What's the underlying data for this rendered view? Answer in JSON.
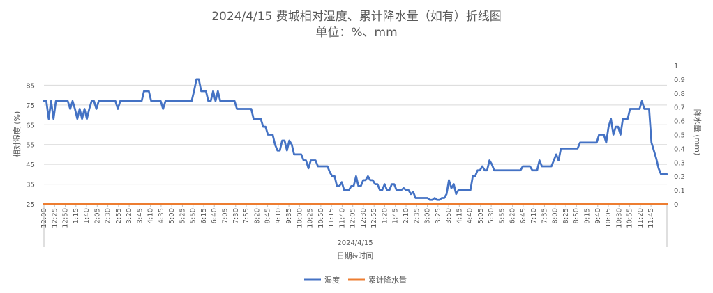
{
  "chart_data": {
    "type": "line",
    "title": "2024/4/15 费城相对湿度、累计降水量（如有）折线图",
    "subtitle": "单位：%、mm",
    "xlabel": "日期&时间",
    "x_group_label": "2024/4/15",
    "ylabel_left": "相对湿度 (%)",
    "ylabel_right": "降水量 (mm)",
    "ylim_left": [
      25,
      95
    ],
    "yticks_left": [
      "25",
      "35",
      "45",
      "55",
      "65",
      "75",
      "85"
    ],
    "ylim_right": [
      0,
      1
    ],
    "yticks_right": [
      "0",
      "0.1",
      "0.2",
      "0.3",
      "0.4",
      "0.5",
      "0.6",
      "0.7",
      "0.8",
      "0.9",
      "1"
    ],
    "x_tick_labels": [
      "12:00",
      "12:25",
      "12:50",
      "1:15",
      "1:40",
      "2:05",
      "2:30",
      "2:55",
      "3:20",
      "3:45",
      "4:10",
      "4:35",
      "5:00",
      "5:25",
      "5:50",
      "6:15",
      "6:40",
      "7:05",
      "7:30",
      "7:55",
      "8:20",
      "8:45",
      "9:10",
      "9:35",
      "10:00",
      "10:25",
      "10:50",
      "11:15",
      "11:40",
      "12:05",
      "12:30",
      "12:55",
      "1:20",
      "1:45",
      "2:10",
      "2:35",
      "3:00",
      "3:25",
      "3:50",
      "4:15",
      "4:40",
      "5:05",
      "5:30",
      "5:55",
      "6:20",
      "6:45",
      "7:10",
      "7:35",
      "8:00",
      "8:25",
      "8:50",
      "9:15",
      "9:40",
      "10:05",
      "10:30",
      "10:55",
      "11:20",
      "11:45"
    ],
    "grid": true,
    "legend_position": "bottom",
    "series": [
      {
        "name": "湿度",
        "color": "#4472C4",
        "axis": "left",
        "points": [
          [
            0,
            77
          ],
          [
            2,
            77
          ],
          [
            4,
            68
          ],
          [
            6,
            77
          ],
          [
            8,
            68
          ],
          [
            10,
            77
          ],
          [
            12,
            77
          ],
          [
            14,
            77
          ],
          [
            16,
            77
          ],
          [
            18,
            77
          ],
          [
            20,
            77
          ],
          [
            22,
            73
          ],
          [
            24,
            77
          ],
          [
            26,
            73
          ],
          [
            28,
            68
          ],
          [
            30,
            73
          ],
          [
            32,
            68
          ],
          [
            34,
            73
          ],
          [
            36,
            68
          ],
          [
            38,
            73
          ],
          [
            40,
            77
          ],
          [
            42,
            77
          ],
          [
            44,
            73
          ],
          [
            46,
            77
          ],
          [
            48,
            77
          ],
          [
            50,
            77
          ],
          [
            52,
            77
          ],
          [
            54,
            77
          ],
          [
            56,
            77
          ],
          [
            58,
            77
          ],
          [
            60,
            77
          ],
          [
            62,
            73
          ],
          [
            64,
            77
          ],
          [
            66,
            77
          ],
          [
            68,
            77
          ],
          [
            70,
            77
          ],
          [
            72,
            77
          ],
          [
            74,
            77
          ],
          [
            76,
            77
          ],
          [
            78,
            77
          ],
          [
            80,
            77
          ],
          [
            82,
            77
          ],
          [
            84,
            82
          ],
          [
            86,
            82
          ],
          [
            88,
            82
          ],
          [
            90,
            77
          ],
          [
            92,
            77
          ],
          [
            94,
            77
          ],
          [
            96,
            77
          ],
          [
            98,
            77
          ],
          [
            100,
            73
          ],
          [
            102,
            77
          ],
          [
            104,
            77
          ],
          [
            106,
            77
          ],
          [
            108,
            77
          ],
          [
            110,
            77
          ],
          [
            112,
            77
          ],
          [
            114,
            77
          ],
          [
            116,
            77
          ],
          [
            118,
            77
          ],
          [
            120,
            77
          ],
          [
            122,
            77
          ],
          [
            124,
            77
          ],
          [
            126,
            82
          ],
          [
            128,
            88
          ],
          [
            130,
            88
          ],
          [
            132,
            82
          ],
          [
            134,
            82
          ],
          [
            136,
            82
          ],
          [
            138,
            77
          ],
          [
            140,
            77
          ],
          [
            142,
            82
          ],
          [
            144,
            77
          ],
          [
            146,
            82
          ],
          [
            148,
            77
          ],
          [
            150,
            77
          ],
          [
            152,
            77
          ],
          [
            154,
            77
          ],
          [
            156,
            77
          ],
          [
            158,
            77
          ],
          [
            160,
            77
          ],
          [
            162,
            73
          ],
          [
            164,
            73
          ],
          [
            166,
            73
          ],
          [
            168,
            73
          ],
          [
            170,
            73
          ],
          [
            172,
            73
          ],
          [
            174,
            73
          ],
          [
            176,
            68
          ],
          [
            178,
            68
          ],
          [
            180,
            68
          ],
          [
            182,
            68
          ],
          [
            184,
            64
          ],
          [
            186,
            64
          ],
          [
            188,
            60
          ],
          [
            190,
            60
          ],
          [
            192,
            60
          ],
          [
            194,
            55
          ],
          [
            196,
            52
          ],
          [
            198,
            52
          ],
          [
            200,
            57
          ],
          [
            202,
            57
          ],
          [
            204,
            52
          ],
          [
            206,
            57
          ],
          [
            208,
            55
          ],
          [
            210,
            50
          ],
          [
            212,
            50
          ],
          [
            214,
            50
          ],
          [
            216,
            50
          ],
          [
            218,
            47
          ],
          [
            220,
            47
          ],
          [
            222,
            43
          ],
          [
            224,
            47
          ],
          [
            226,
            47
          ],
          [
            228,
            47
          ],
          [
            230,
            44
          ],
          [
            232,
            44
          ],
          [
            234,
            44
          ],
          [
            236,
            44
          ],
          [
            238,
            44
          ],
          [
            240,
            41
          ],
          [
            242,
            39
          ],
          [
            244,
            39
          ],
          [
            246,
            34
          ],
          [
            248,
            34
          ],
          [
            250,
            36
          ],
          [
            252,
            32
          ],
          [
            254,
            32
          ],
          [
            256,
            32
          ],
          [
            258,
            34
          ],
          [
            260,
            34
          ],
          [
            262,
            39
          ],
          [
            264,
            34
          ],
          [
            266,
            34
          ],
          [
            268,
            37
          ],
          [
            270,
            37
          ],
          [
            272,
            39
          ],
          [
            274,
            37
          ],
          [
            276,
            37
          ],
          [
            278,
            35
          ],
          [
            280,
            35
          ],
          [
            282,
            32
          ],
          [
            284,
            32
          ],
          [
            286,
            35
          ],
          [
            288,
            32
          ],
          [
            290,
            32
          ],
          [
            292,
            35
          ],
          [
            294,
            35
          ],
          [
            296,
            32
          ],
          [
            298,
            32
          ],
          [
            300,
            32
          ],
          [
            302,
            33
          ],
          [
            304,
            32
          ],
          [
            306,
            32
          ],
          [
            308,
            30
          ],
          [
            310,
            31
          ],
          [
            312,
            28
          ],
          [
            314,
            28
          ],
          [
            316,
            28
          ],
          [
            318,
            28
          ],
          [
            320,
            28
          ],
          [
            322,
            28
          ],
          [
            324,
            27
          ],
          [
            326,
            27
          ],
          [
            328,
            28
          ],
          [
            330,
            27
          ],
          [
            332,
            27
          ],
          [
            334,
            28
          ],
          [
            336,
            28
          ],
          [
            338,
            30
          ],
          [
            340,
            37
          ],
          [
            342,
            33
          ],
          [
            344,
            35
          ],
          [
            346,
            30
          ],
          [
            348,
            32
          ],
          [
            350,
            32
          ],
          [
            352,
            32
          ],
          [
            354,
            32
          ],
          [
            356,
            32
          ],
          [
            358,
            32
          ],
          [
            360,
            39
          ],
          [
            362,
            39
          ],
          [
            364,
            42
          ],
          [
            366,
            42
          ],
          [
            368,
            44
          ],
          [
            370,
            42
          ],
          [
            372,
            42
          ],
          [
            374,
            47
          ],
          [
            376,
            45
          ],
          [
            378,
            42
          ],
          [
            380,
            42
          ],
          [
            382,
            42
          ],
          [
            384,
            42
          ],
          [
            386,
            42
          ],
          [
            388,
            42
          ],
          [
            390,
            42
          ],
          [
            392,
            42
          ],
          [
            394,
            42
          ],
          [
            396,
            42
          ],
          [
            398,
            42
          ],
          [
            400,
            42
          ],
          [
            402,
            44
          ],
          [
            404,
            44
          ],
          [
            406,
            44
          ],
          [
            408,
            44
          ],
          [
            410,
            42
          ],
          [
            412,
            42
          ],
          [
            414,
            42
          ],
          [
            416,
            47
          ],
          [
            418,
            44
          ],
          [
            420,
            44
          ],
          [
            422,
            44
          ],
          [
            424,
            44
          ],
          [
            426,
            44
          ],
          [
            428,
            47
          ],
          [
            430,
            50
          ],
          [
            432,
            47
          ],
          [
            434,
            53
          ],
          [
            436,
            53
          ],
          [
            438,
            53
          ],
          [
            440,
            53
          ],
          [
            442,
            53
          ],
          [
            444,
            53
          ],
          [
            446,
            53
          ],
          [
            448,
            53
          ],
          [
            450,
            56
          ],
          [
            452,
            56
          ],
          [
            454,
            56
          ],
          [
            456,
            56
          ],
          [
            458,
            56
          ],
          [
            460,
            56
          ],
          [
            462,
            56
          ],
          [
            464,
            56
          ],
          [
            466,
            60
          ],
          [
            468,
            60
          ],
          [
            470,
            60
          ],
          [
            472,
            56
          ],
          [
            474,
            64
          ],
          [
            476,
            68
          ],
          [
            478,
            60
          ],
          [
            480,
            64
          ],
          [
            482,
            64
          ],
          [
            484,
            60
          ],
          [
            486,
            68
          ],
          [
            488,
            68
          ],
          [
            490,
            68
          ],
          [
            492,
            73
          ],
          [
            494,
            73
          ],
          [
            496,
            73
          ],
          [
            498,
            73
          ],
          [
            500,
            73
          ],
          [
            502,
            77
          ],
          [
            504,
            73
          ],
          [
            506,
            73
          ],
          [
            508,
            73
          ],
          [
            510,
            56
          ],
          [
            512,
            52
          ],
          [
            514,
            48
          ],
          [
            516,
            43
          ],
          [
            518,
            40
          ],
          [
            520,
            40
          ],
          [
            522,
            40
          ],
          [
            523,
            40
          ]
        ]
      },
      {
        "name": "累计降水量",
        "color": "#ED7D31",
        "axis": "right",
        "points": [
          [
            0,
            0
          ],
          [
            523,
            0
          ]
        ]
      }
    ]
  }
}
